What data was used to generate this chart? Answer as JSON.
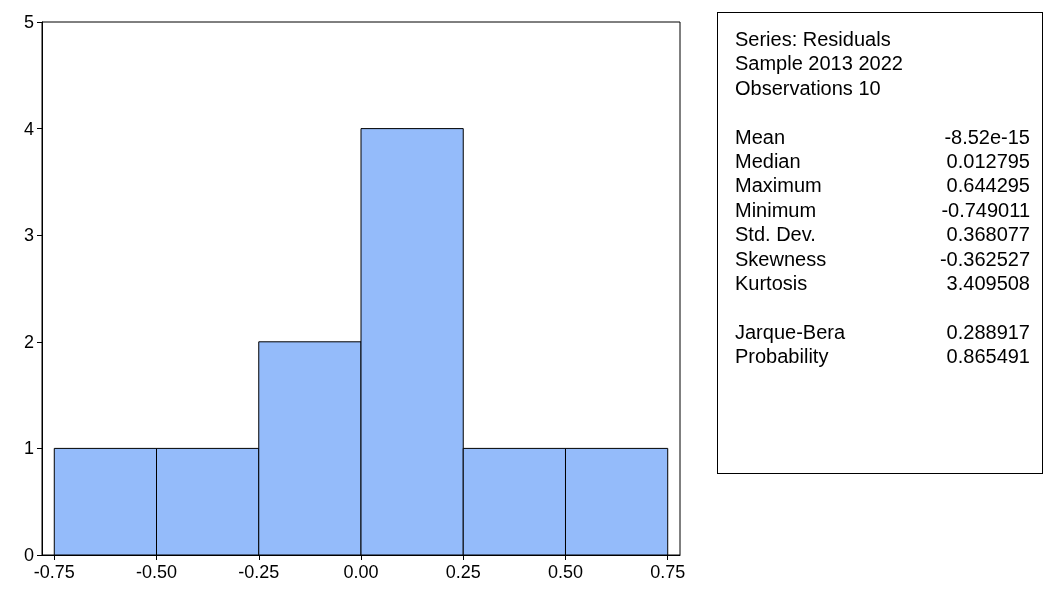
{
  "chart_data": {
    "type": "histogram",
    "bins": [
      -0.75,
      -0.5,
      -0.25,
      0,
      0.25,
      0.5,
      0.75
    ],
    "values": [
      1,
      1,
      2,
      4,
      1,
      1
    ],
    "color": "#94bbfa",
    "xlim": [
      -0.78,
      0.78
    ],
    "xticks": [
      {
        "value": -0.75,
        "label": "-0.75"
      },
      {
        "value": -0.5,
        "label": "-0.50"
      },
      {
        "value": -0.25,
        "label": "-0.25"
      },
      {
        "value": 0,
        "label": "0.00"
      },
      {
        "value": 0.25,
        "label": "0.25"
      },
      {
        "value": 0.5,
        "label": "0.50"
      },
      {
        "value": 0.75,
        "label": "0.75"
      }
    ],
    "ylim": [
      0,
      5
    ],
    "yticks": [
      0,
      1,
      2,
      3,
      4,
      5
    ],
    "grid": false,
    "annotations": [
      "Series: Residuals",
      "Sample 2013 2022",
      "Observations 10",
      "Mean",
      "-8.52e-15",
      "Median",
      "0.012795",
      "Maximum",
      "0.644295",
      "Minimum",
      "-0.749011",
      "Std. Dev.",
      "0.368077",
      "Skewness",
      "-0.362527",
      "Kurtosis",
      "3.409508",
      "Jarque-Bera",
      "0.288917",
      "Probability",
      "0.865491"
    ]
  }
}
